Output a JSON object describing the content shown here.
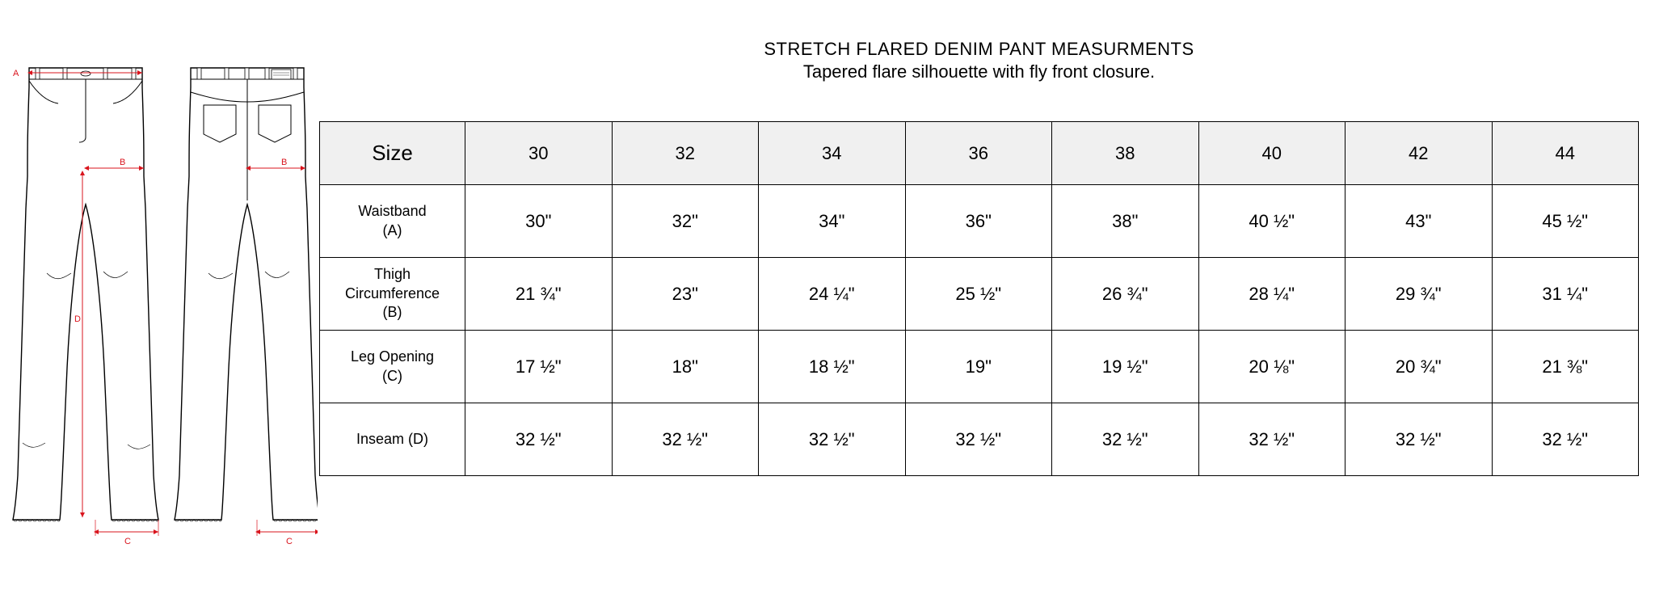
{
  "header": {
    "title": "STRETCH FLARED DENIM PANT MEASURMENTS",
    "subtitle": "Tapered flare silhouette with fly front closure."
  },
  "table": {
    "header_label": "Size",
    "sizes": [
      "30",
      "32",
      "34",
      "36",
      "38",
      "40",
      "42",
      "44"
    ],
    "rows": [
      {
        "label": "Waistband\n(A)",
        "values": [
          "30\"",
          "32\"",
          "34\"",
          "36\"",
          "38\"",
          "40 ½\"",
          "43\"",
          "45 ½\""
        ]
      },
      {
        "label": "Thigh\nCircumference\n(B)",
        "values": [
          "21 ¾\"",
          "23\"",
          "24 ¼\"",
          "25 ½\"",
          "26 ¾\"",
          "28 ¼\"",
          "29 ¾\"",
          "31 ¼\""
        ]
      },
      {
        "label": "Leg Opening\n(C)",
        "values": [
          "17 ½\"",
          "18\"",
          "18 ½\"",
          "19\"",
          "19 ½\"",
          "20 ⅛\"",
          "20 ¾\"",
          "21 ⅜\""
        ]
      },
      {
        "label": "Inseam (D)",
        "values": [
          "32 ½\"",
          "32 ½\"",
          "32 ½\"",
          "32 ½\"",
          "32 ½\"",
          "32 ½\"",
          "32 ½\"",
          "32 ½\""
        ]
      }
    ]
  },
  "diagram": {
    "labels": {
      "A": "A",
      "B": "B",
      "C": "C",
      "D": "D"
    },
    "colors": {
      "line": "#000000",
      "measure": "#d9141d",
      "bg": "#ffffff"
    }
  }
}
